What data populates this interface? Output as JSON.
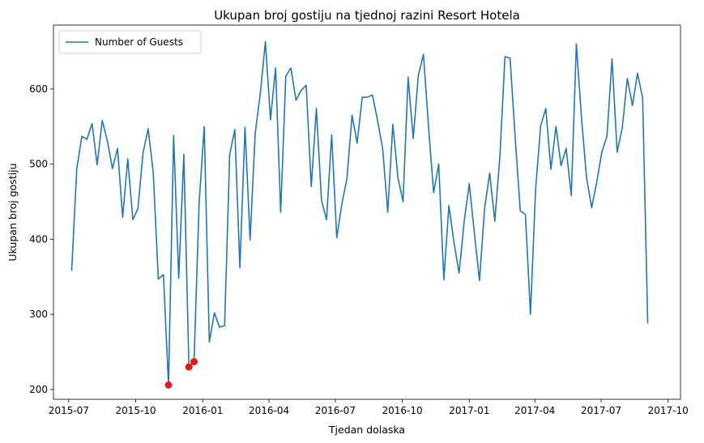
{
  "chart_data": {
    "type": "line",
    "title": "Ukupan broj gostiju na tjednoj razini Resort Hotela",
    "xlabel": "Tjedan dolaska",
    "ylabel": "Ukupan broj gostiju",
    "legend": "upper-left",
    "grid": false,
    "xlim": [
      "2015-06-10",
      "2017-10-18"
    ],
    "ylim": [
      187,
      685
    ],
    "x_ticks": [
      "2015-07",
      "2015-10",
      "2016-01",
      "2016-04",
      "2016-07",
      "2016-10",
      "2017-01",
      "2017-04",
      "2017-07",
      "2017-10"
    ],
    "y_ticks": [
      200,
      300,
      400,
      500,
      600
    ],
    "series": [
      {
        "name": "Number of Guests",
        "color": "#1f77b4",
        "x": [
          "2015-07-05",
          "2015-07-12",
          "2015-07-19",
          "2015-07-26",
          "2015-08-02",
          "2015-08-09",
          "2015-08-16",
          "2015-08-23",
          "2015-08-30",
          "2015-09-06",
          "2015-09-13",
          "2015-09-20",
          "2015-09-27",
          "2015-10-04",
          "2015-10-11",
          "2015-10-18",
          "2015-10-25",
          "2015-11-01",
          "2015-11-08",
          "2015-11-15",
          "2015-11-22",
          "2015-11-29",
          "2015-12-06",
          "2015-12-13",
          "2015-12-20",
          "2015-12-27",
          "2016-01-03",
          "2016-01-10",
          "2016-01-17",
          "2016-01-24",
          "2016-01-31",
          "2016-02-07",
          "2016-02-14",
          "2016-02-21",
          "2016-02-28",
          "2016-03-06",
          "2016-03-13",
          "2016-03-20",
          "2016-03-27",
          "2016-04-03",
          "2016-04-10",
          "2016-04-17",
          "2016-04-24",
          "2016-05-01",
          "2016-05-08",
          "2016-05-15",
          "2016-05-22",
          "2016-05-29",
          "2016-06-05",
          "2016-06-12",
          "2016-06-19",
          "2016-06-26",
          "2016-07-03",
          "2016-07-10",
          "2016-07-17",
          "2016-07-24",
          "2016-07-31",
          "2016-08-07",
          "2016-08-14",
          "2016-08-21",
          "2016-08-28",
          "2016-09-04",
          "2016-09-11",
          "2016-09-18",
          "2016-09-25",
          "2016-10-02",
          "2016-10-09",
          "2016-10-16",
          "2016-10-23",
          "2016-10-30",
          "2016-11-06",
          "2016-11-13",
          "2016-11-20",
          "2016-11-27",
          "2016-12-04",
          "2016-12-11",
          "2016-12-18",
          "2016-12-25",
          "2017-01-01",
          "2017-01-08",
          "2017-01-15",
          "2017-01-22",
          "2017-01-29",
          "2017-02-05",
          "2017-02-12",
          "2017-02-19",
          "2017-02-26",
          "2017-03-05",
          "2017-03-12",
          "2017-03-19",
          "2017-03-26",
          "2017-04-02",
          "2017-04-09",
          "2017-04-16",
          "2017-04-23",
          "2017-04-30",
          "2017-05-07",
          "2017-05-14",
          "2017-05-21",
          "2017-05-28",
          "2017-06-04",
          "2017-06-11",
          "2017-06-18",
          "2017-06-25",
          "2017-07-02",
          "2017-07-09",
          "2017-07-16",
          "2017-07-23",
          "2017-07-30",
          "2017-08-06",
          "2017-08-13",
          "2017-08-20",
          "2017-08-27",
          "2017-09-03"
        ],
        "values": [
          358,
          494,
          537,
          533,
          554,
          499,
          558,
          531,
          494,
          521,
          429,
          507,
          426,
          441,
          515,
          547,
          489,
          347,
          353,
          206,
          538,
          348,
          513,
          230,
          237,
          448,
          550,
          263,
          302,
          283,
          285,
          513,
          546,
          362,
          549,
          399,
          541,
          594,
          663,
          559,
          628,
          436,
          617,
          628,
          585,
          598,
          605,
          470,
          574,
          452,
          426,
          539,
          402,
          447,
          481,
          565,
          528,
          589,
          589,
          592,
          558,
          521,
          436,
          553,
          482,
          450,
          616,
          534,
          618,
          646,
          550,
          462,
          500,
          346,
          445,
          395,
          355,
          424,
          474,
          408,
          345,
          441,
          488,
          424,
          510,
          643,
          641,
          535,
          438,
          433,
          300,
          466,
          551,
          574,
          493,
          550,
          498,
          521,
          458,
          660,
          562,
          482,
          442,
          476,
          516,
          537,
          640,
          516,
          548,
          614,
          578,
          621,
          588,
          288
        ]
      }
    ],
    "highlights": {
      "color": "#e31a1c",
      "points": [
        {
          "x": "2015-11-15",
          "y": 206
        },
        {
          "x": "2015-12-13",
          "y": 230
        },
        {
          "x": "2015-12-20",
          "y": 237
        }
      ]
    }
  }
}
